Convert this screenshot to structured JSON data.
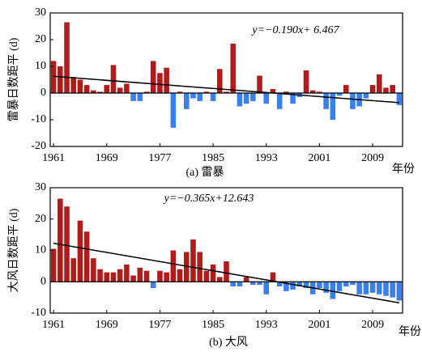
{
  "chart_data": [
    {
      "type": "bar",
      "title": "(a) 雷暴",
      "x_label": "年份",
      "y_label": "雷暴日数距平 (d)",
      "annotation": "y=−0.190x+ 6.467",
      "trend": {
        "slope": -0.19,
        "intercept": 6.467
      },
      "x": [
        1961,
        1962,
        1963,
        1964,
        1965,
        1966,
        1967,
        1968,
        1969,
        1970,
        1971,
        1972,
        1973,
        1974,
        1975,
        1976,
        1977,
        1978,
        1979,
        1980,
        1981,
        1982,
        1983,
        1984,
        1985,
        1986,
        1987,
        1988,
        1989,
        1990,
        1991,
        1992,
        1993,
        1994,
        1995,
        1996,
        1997,
        1998,
        1999,
        2000,
        2001,
        2002,
        2003,
        2004,
        2005,
        2006,
        2007,
        2008,
        2009,
        2010,
        2011,
        2012,
        2013
      ],
      "values": [
        12,
        10,
        26.5,
        6,
        5,
        3,
        1,
        0.5,
        3,
        10.5,
        2,
        3.5,
        -3,
        -3,
        0.5,
        12,
        7.5,
        9.5,
        -13,
        0.5,
        -6,
        -2,
        -3,
        0.5,
        -3,
        9,
        0.5,
        18.5,
        -5,
        -4,
        -3,
        6.5,
        -4,
        1.5,
        -6,
        0.5,
        -4,
        -1.5,
        8.5,
        1,
        0.5,
        -6,
        -10,
        -1,
        3,
        -6,
        -5,
        -2,
        3,
        7,
        2,
        3,
        -4.5
      ],
      "color_positive": "#b01c1c",
      "color_negative": "#3a7ff0",
      "trend_color": "#000000",
      "xlim": [
        1960.5,
        2013.5
      ],
      "xticks": [
        1961,
        1969,
        1977,
        1985,
        1993,
        2001,
        2009
      ],
      "ylim": [
        -20,
        30
      ],
      "yticks": [
        -20,
        -10,
        0,
        10,
        20,
        30
      ]
    },
    {
      "type": "bar",
      "title": "(b) 大风",
      "x_label": "年份",
      "y_label": "大风日数距平 (d)",
      "annotation": "y=−0.365x+12.643",
      "trend": {
        "slope": -0.365,
        "intercept": 12.643
      },
      "x": [
        1961,
        1962,
        1963,
        1964,
        1965,
        1966,
        1967,
        1968,
        1969,
        1970,
        1971,
        1972,
        1973,
        1974,
        1975,
        1976,
        1977,
        1978,
        1979,
        1980,
        1981,
        1982,
        1983,
        1984,
        1985,
        1986,
        1987,
        1988,
        1989,
        1990,
        1991,
        1992,
        1993,
        1994,
        1995,
        1996,
        1997,
        1998,
        1999,
        2000,
        2001,
        2002,
        2003,
        2004,
        2005,
        2006,
        2007,
        2008,
        2009,
        2010,
        2011,
        2012,
        2013
      ],
      "values": [
        10.5,
        26.5,
        24,
        7.5,
        19.5,
        16,
        7.5,
        4,
        3,
        3,
        4,
        5.5,
        2,
        4.5,
        3.5,
        -2,
        3.5,
        3,
        10,
        4,
        9.5,
        13.5,
        9.5,
        3.5,
        5.5,
        1.5,
        6.5,
        -1.5,
        -1.5,
        1.5,
        -1,
        -1,
        -4,
        3,
        -1.5,
        -3,
        -2.5,
        -1.5,
        -2,
        -4,
        -2,
        -3.5,
        -5.5,
        -3,
        -1.5,
        -1,
        -4,
        -4,
        -3.5,
        -4,
        -4.5,
        -5,
        -6
      ],
      "color_positive": "#b01c1c",
      "color_negative": "#3a7ff0",
      "trend_color": "#000000",
      "xlim": [
        1960.5,
        2013.5
      ],
      "xticks": [
        1961,
        1969,
        1977,
        1985,
        1993,
        2001,
        2009
      ],
      "ylim": [
        -10,
        30
      ],
      "yticks": [
        -10,
        0,
        10,
        20,
        30
      ]
    }
  ]
}
